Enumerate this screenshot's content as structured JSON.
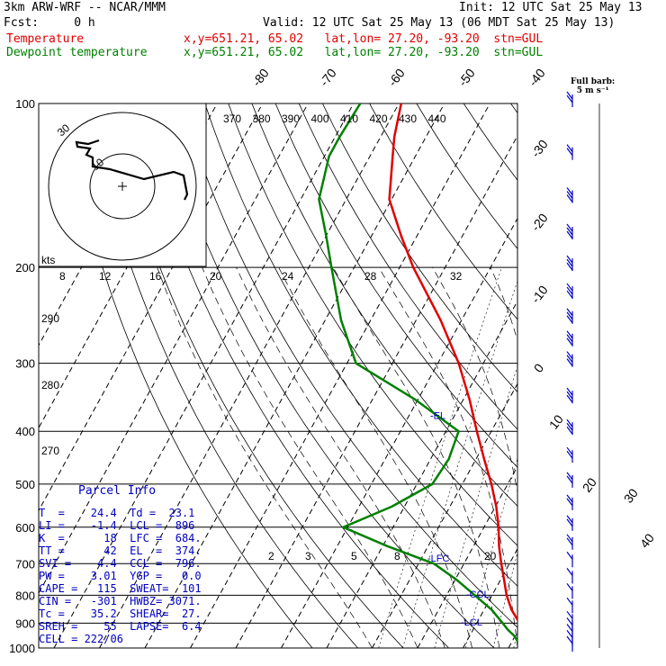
{
  "header": {
    "model": "3km ARW-WRF -- NCAR/MMM",
    "init": "Init: 12 UTC Sat 25 May 13",
    "fcst": "Fcst:     0 h",
    "valid": "Valid: 12 UTC Sat 25 May 13 (06 MDT Sat 25 May 13)",
    "temp_label": "Temperature",
    "dew_label": "Dewpoint temperature",
    "temp_info": "x,y=651.21, 65.02   lat,lon= 27.20, -93.20  stn=GUL",
    "dew_info": "x,y=651.21, 65.02   lat,lon= 27.20, -93.20  stn=GUL"
  },
  "barb_legend": {
    "line1": "Full barb:",
    "line2": "5 m s⁻¹"
  },
  "hodograph": {
    "units": "kts",
    "ring_labels": [
      "10",
      "30"
    ]
  },
  "parcel_info": {
    "title": "Parcel Info",
    "rows": [
      "T  =    24.4  Td =  23.1",
      "LI =    -1.4  LCL =  896",
      "K  =      18  LFC =  684.",
      "TT =      42  EL  =  374.",
      "SVI =    4.4  CCL =  796.",
      "PW =    3.01  YGP =   0.0",
      "CAPE =   115  SWEAT=  101",
      "CIN =   -301  HWBZ= 3071.",
      "Tc =    35.2  SHEAR=  27.",
      "SREH =    55  LAPSE=  6.4",
      "CELL = 222/06"
    ]
  },
  "chart_data": {
    "type": "line",
    "title": "",
    "xlabel": "",
    "ylabel": "",
    "y_axis": "pressure (hPa), log scale, decreasing upward",
    "ylim": [
      1000,
      100
    ],
    "pressure_ticks": [
      100,
      200,
      300,
      400,
      500,
      600,
      700,
      800,
      900,
      1000
    ],
    "pressure_tick_labels": [
      "100",
      "200",
      "300",
      "400",
      "500",
      "600",
      "700",
      "800",
      "900",
      "1000"
    ],
    "isotherm_labels": [
      "-80",
      "-70",
      "-60",
      "-50",
      "-40",
      "-30",
      "-20",
      "-10",
      "0",
      "10",
      "20",
      "30",
      "40"
    ],
    "theta_e_labels": [
      "370",
      "380",
      "390",
      "400",
      "410",
      "420",
      "430",
      "440"
    ],
    "theta_labels": [
      "290",
      "280",
      "270"
    ],
    "mixing_ratio_labels_upper": [
      "8",
      "12",
      "16",
      "20",
      "24",
      "28",
      "32"
    ],
    "mixing_ratio_labels_lower": [
      "2",
      "3",
      "5",
      "8",
      "20"
    ],
    "levels": [
      {
        "label": "EL",
        "text": "-EL",
        "pressure": 374
      },
      {
        "label": "LFC",
        "text": "-LFC",
        "pressure": 684
      },
      {
        "label": "CCL",
        "text": "-CCL",
        "pressure": 796
      },
      {
        "label": "LCL",
        "text": "-LCL",
        "pressure": 896
      }
    ],
    "series": [
      {
        "name": "Temperature",
        "color": "#e00000",
        "points": [
          [
            1000,
            24.4
          ],
          [
            975,
            23.2
          ],
          [
            950,
            22.6
          ],
          [
            925,
            21.0
          ],
          [
            900,
            19.4
          ],
          [
            850,
            16.0
          ],
          [
            800,
            13.2
          ],
          [
            750,
            10.8
          ],
          [
            700,
            8.2
          ],
          [
            650,
            5.6
          ],
          [
            600,
            3.2
          ],
          [
            550,
            0.2
          ],
          [
            500,
            -3.6
          ],
          [
            450,
            -8.2
          ],
          [
            400,
            -13.2
          ],
          [
            350,
            -18.6
          ],
          [
            300,
            -25.4
          ],
          [
            250,
            -34.6
          ],
          [
            200,
            -47.0
          ],
          [
            175,
            -53.5
          ],
          [
            150,
            -60.5
          ],
          [
            125,
            -65.0
          ],
          [
            115,
            -67.0
          ],
          [
            100,
            -69.5
          ]
        ]
      },
      {
        "name": "Dewpoint temperature",
        "color": "#008000",
        "points": [
          [
            1000,
            23.1
          ],
          [
            975,
            21.4
          ],
          [
            950,
            19.8
          ],
          [
            925,
            17.6
          ],
          [
            900,
            15.7
          ],
          [
            850,
            11.6
          ],
          [
            800,
            6.2
          ],
          [
            750,
            0.4
          ],
          [
            700,
            -6.6
          ],
          [
            650,
            -19.0
          ],
          [
            600,
            -31.0
          ],
          [
            550,
            -22.8
          ],
          [
            500,
            -16.6
          ],
          [
            450,
            -16.0
          ],
          [
            400,
            -17.2
          ],
          [
            350,
            -30.5
          ],
          [
            300,
            -48.0
          ],
          [
            250,
            -56.5
          ],
          [
            200,
            -65.0
          ],
          [
            175,
            -70.0
          ],
          [
            150,
            -76.0
          ],
          [
            125,
            -79.0
          ],
          [
            115,
            -79.0
          ],
          [
            100,
            -78.5
          ]
        ]
      }
    ],
    "wind_profile": [
      {
        "pressure": 1000,
        "speed_ms": 5
      },
      {
        "pressure": 975,
        "speed_ms": 5
      },
      {
        "pressure": 950,
        "speed_ms": 5
      },
      {
        "pressure": 925,
        "speed_ms": 5
      },
      {
        "pressure": 900,
        "speed_ms": 5
      },
      {
        "pressure": 850,
        "speed_ms": 5
      },
      {
        "pressure": 800,
        "speed_ms": 5
      },
      {
        "pressure": 750,
        "speed_ms": 5
      },
      {
        "pressure": 700,
        "speed_ms": 5
      },
      {
        "pressure": 650,
        "speed_ms": 10
      },
      {
        "pressure": 600,
        "speed_ms": 10
      },
      {
        "pressure": 550,
        "speed_ms": 10
      },
      {
        "pressure": 500,
        "speed_ms": 10
      },
      {
        "pressure": 450,
        "speed_ms": 10
      },
      {
        "pressure": 400,
        "speed_ms": 15
      },
      {
        "pressure": 350,
        "speed_ms": 15
      },
      {
        "pressure": 300,
        "speed_ms": 15
      },
      {
        "pressure": 275,
        "speed_ms": 15
      },
      {
        "pressure": 250,
        "speed_ms": 15
      },
      {
        "pressure": 225,
        "speed_ms": 15
      },
      {
        "pressure": 200,
        "speed_ms": 15
      },
      {
        "pressure": 175,
        "speed_ms": 15
      },
      {
        "pressure": 150,
        "speed_ms": 15
      },
      {
        "pressure": 125,
        "speed_ms": 10
      },
      {
        "pressure": 100,
        "speed_ms": 10
      }
    ]
  }
}
